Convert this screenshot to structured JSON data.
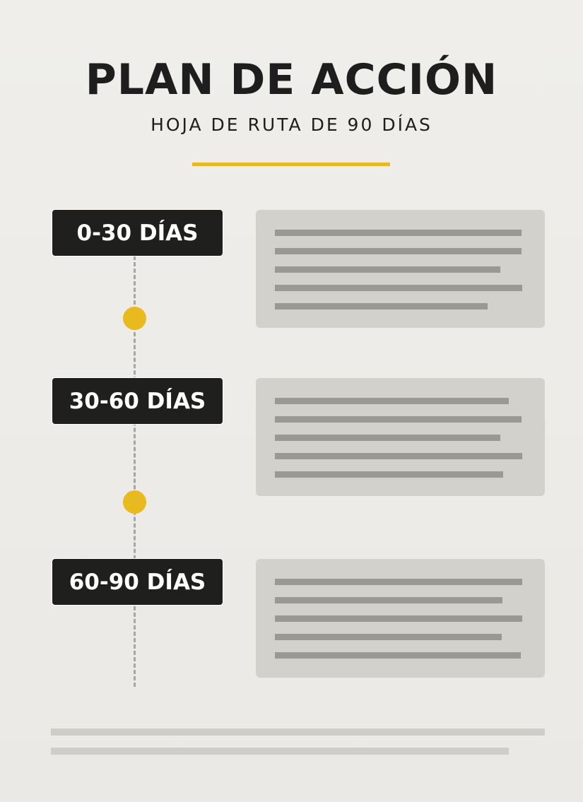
{
  "header": {
    "title": "PLAN DE ACCIÓN",
    "subtitle": "HOJA DE RUTA DE 90 DÍAS"
  },
  "colors": {
    "accent": "#e8b820",
    "label_bg": "#1f1f1e",
    "panel_bg": "#d3d1cc",
    "placeholder_line": "#9a9893"
  },
  "phases": [
    {
      "label": "0-30 DÍAS"
    },
    {
      "label": "30-60 DÍAS"
    },
    {
      "label": "60-90 DÍAS"
    }
  ]
}
